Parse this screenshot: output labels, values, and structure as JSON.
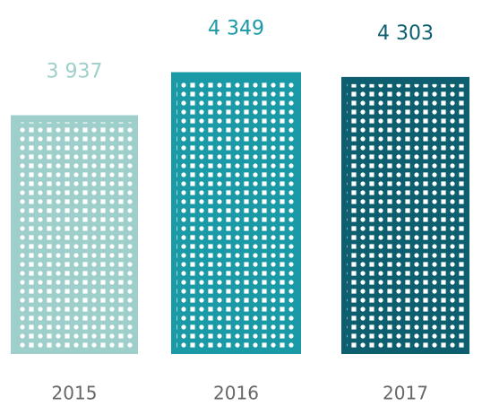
{
  "chart_data": {
    "type": "bar",
    "categories": [
      "2015",
      "2016",
      "2017"
    ],
    "values": [
      3937,
      4349,
      4303
    ],
    "value_labels": [
      "3 937",
      "4 349",
      "4 303"
    ],
    "colors": [
      "#9ecfca",
      "#1a9aa7",
      "#0d5f6f"
    ],
    "ylim": [
      1650,
      5040
    ]
  }
}
